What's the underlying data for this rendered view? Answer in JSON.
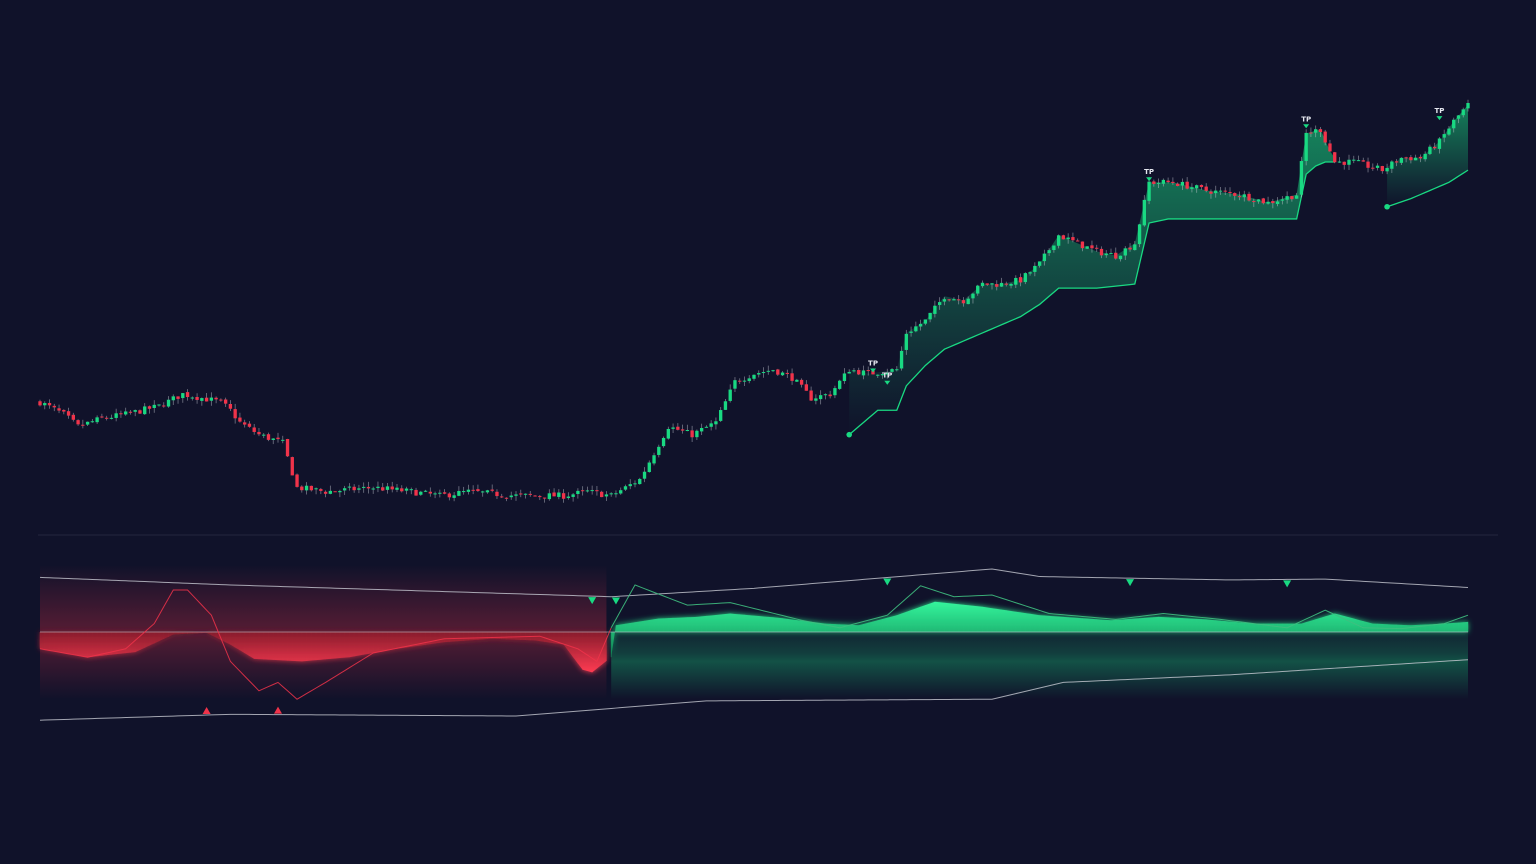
{
  "colors": {
    "background": "#10122a",
    "bull": "#19d982",
    "bear": "#f0334a",
    "wick": "#c9ccd6",
    "band": "#c8cad3",
    "panel_divider": "#23263e",
    "oscillator_line": "#3fbf7f"
  },
  "chart_data": [
    {
      "type": "candlestick",
      "panel": "price",
      "title": "",
      "xlabel": "",
      "ylabel": "",
      "x_range": [
        0,
        300
      ],
      "ylim": [
        0,
        100
      ],
      "grid": false,
      "legend": "none",
      "price_path": [
        {
          "i": 0,
          "v": 27
        },
        {
          "i": 5,
          "v": 24
        },
        {
          "i": 8,
          "v": 21
        },
        {
          "i": 13,
          "v": 23
        },
        {
          "i": 18,
          "v": 24
        },
        {
          "i": 25,
          "v": 26
        },
        {
          "i": 30,
          "v": 29
        },
        {
          "i": 34,
          "v": 28
        },
        {
          "i": 38,
          "v": 27
        },
        {
          "i": 40,
          "v": 25
        },
        {
          "i": 42,
          "v": 22
        },
        {
          "i": 46,
          "v": 19
        },
        {
          "i": 51,
          "v": 17
        },
        {
          "i": 54,
          "v": 6
        },
        {
          "i": 60,
          "v": 5
        },
        {
          "i": 70,
          "v": 6
        },
        {
          "i": 78,
          "v": 5
        },
        {
          "i": 84,
          "v": 4
        },
        {
          "i": 90,
          "v": 5
        },
        {
          "i": 100,
          "v": 4
        },
        {
          "i": 110,
          "v": 4
        },
        {
          "i": 115,
          "v": 5
        },
        {
          "i": 120,
          "v": 4
        },
        {
          "i": 126,
          "v": 8
        },
        {
          "i": 132,
          "v": 21
        },
        {
          "i": 137,
          "v": 19
        },
        {
          "i": 142,
          "v": 22
        },
        {
          "i": 146,
          "v": 32
        },
        {
          "i": 150,
          "v": 34
        },
        {
          "i": 154,
          "v": 35
        },
        {
          "i": 158,
          "v": 33
        },
        {
          "i": 162,
          "v": 28
        },
        {
          "i": 166,
          "v": 29
        },
        {
          "i": 170,
          "v": 35
        },
        {
          "i": 174,
          "v": 34
        },
        {
          "i": 180,
          "v": 35
        },
        {
          "i": 182,
          "v": 44
        },
        {
          "i": 186,
          "v": 47
        },
        {
          "i": 190,
          "v": 53
        },
        {
          "i": 194,
          "v": 52
        },
        {
          "i": 198,
          "v": 56
        },
        {
          "i": 202,
          "v": 56
        },
        {
          "i": 206,
          "v": 57
        },
        {
          "i": 210,
          "v": 61
        },
        {
          "i": 214,
          "v": 68
        },
        {
          "i": 218,
          "v": 66
        },
        {
          "i": 222,
          "v": 64
        },
        {
          "i": 226,
          "v": 63
        },
        {
          "i": 230,
          "v": 66
        },
        {
          "i": 233,
          "v": 81
        },
        {
          "i": 238,
          "v": 81
        },
        {
          "i": 245,
          "v": 79
        },
        {
          "i": 252,
          "v": 78
        },
        {
          "i": 258,
          "v": 76
        },
        {
          "i": 264,
          "v": 78
        },
        {
          "i": 266,
          "v": 93
        },
        {
          "i": 269,
          "v": 94
        },
        {
          "i": 272,
          "v": 86
        },
        {
          "i": 276,
          "v": 86
        },
        {
          "i": 282,
          "v": 84
        },
        {
          "i": 286,
          "v": 87
        },
        {
          "i": 290,
          "v": 87
        },
        {
          "i": 294,
          "v": 91
        },
        {
          "i": 297,
          "v": 96
        },
        {
          "i": 300,
          "v": 100
        }
      ],
      "trailing_stop": [
        {
          "i": 170,
          "v": 19
        },
        {
          "i": 172,
          "v": 21
        },
        {
          "i": 174,
          "v": 23
        },
        {
          "i": 176,
          "v": 25
        },
        {
          "i": 180,
          "v": 25
        },
        {
          "i": 182,
          "v": 31
        },
        {
          "i": 186,
          "v": 36
        },
        {
          "i": 190,
          "v": 40
        },
        {
          "i": 194,
          "v": 42
        },
        {
          "i": 198,
          "v": 44
        },
        {
          "i": 202,
          "v": 46
        },
        {
          "i": 206,
          "v": 48
        },
        {
          "i": 210,
          "v": 51
        },
        {
          "i": 214,
          "v": 55
        },
        {
          "i": 222,
          "v": 55
        },
        {
          "i": 230,
          "v": 56
        },
        {
          "i": 233,
          "v": 71
        },
        {
          "i": 237,
          "v": 72
        },
        {
          "i": 264,
          "v": 72
        },
        {
          "i": 266,
          "v": 83
        },
        {
          "i": 268,
          "v": 85
        },
        {
          "i": 270,
          "v": 86
        },
        {
          "i": 272,
          "v": 86
        }
      ],
      "trailing_stop_2": [
        {
          "i": 283,
          "v": 75
        },
        {
          "i": 288,
          "v": 77
        },
        {
          "i": 292,
          "v": 79
        },
        {
          "i": 296,
          "v": 81
        },
        {
          "i": 300,
          "v": 84
        }
      ],
      "entry_markers": [
        {
          "i": 170,
          "v": 19
        },
        {
          "i": 283,
          "v": 75
        }
      ],
      "tp_label": "TP",
      "tp_markers": [
        {
          "i": 175,
          "v": 36,
          "label": "TP"
        },
        {
          "i": 178,
          "v": 33,
          "label": "TP"
        },
        {
          "i": 233,
          "v": 83,
          "label": "TP"
        },
        {
          "i": 266,
          "v": 96,
          "label": "TP"
        },
        {
          "i": 294,
          "v": 98,
          "label": "TP"
        }
      ]
    },
    {
      "type": "area",
      "panel": "oscillator",
      "title": "",
      "xlabel": "",
      "ylabel": "",
      "x_range": [
        0,
        300
      ],
      "ylim": [
        -100,
        100
      ],
      "zero_line": 0,
      "grid": false,
      "legend": "none",
      "bear_segment": [
        0,
        119
      ],
      "bull_segment": [
        120,
        300
      ],
      "histogram_path": [
        {
          "i": 0,
          "v": -20
        },
        {
          "i": 10,
          "v": -30
        },
        {
          "i": 20,
          "v": -24
        },
        {
          "i": 28,
          "v": -3
        },
        {
          "i": 35,
          "v": -1
        },
        {
          "i": 40,
          "v": -15
        },
        {
          "i": 45,
          "v": -32
        },
        {
          "i": 55,
          "v": -35
        },
        {
          "i": 65,
          "v": -30
        },
        {
          "i": 75,
          "v": -20
        },
        {
          "i": 85,
          "v": -12
        },
        {
          "i": 95,
          "v": -8
        },
        {
          "i": 104,
          "v": -10
        },
        {
          "i": 110,
          "v": -15
        },
        {
          "i": 114,
          "v": -45
        },
        {
          "i": 116,
          "v": -48
        },
        {
          "i": 120,
          "v": -30
        },
        {
          "i": 121,
          "v": 8
        },
        {
          "i": 130,
          "v": 16
        },
        {
          "i": 138,
          "v": 18
        },
        {
          "i": 145,
          "v": 22
        },
        {
          "i": 155,
          "v": 17
        },
        {
          "i": 165,
          "v": 10
        },
        {
          "i": 172,
          "v": 8
        },
        {
          "i": 180,
          "v": 20
        },
        {
          "i": 188,
          "v": 36
        },
        {
          "i": 198,
          "v": 30
        },
        {
          "i": 210,
          "v": 20
        },
        {
          "i": 225,
          "v": 14
        },
        {
          "i": 235,
          "v": 18
        },
        {
          "i": 245,
          "v": 15
        },
        {
          "i": 255,
          "v": 10
        },
        {
          "i": 265,
          "v": 10
        },
        {
          "i": 272,
          "v": 22
        },
        {
          "i": 280,
          "v": 10
        },
        {
          "i": 288,
          "v": 8
        },
        {
          "i": 295,
          "v": 10
        },
        {
          "i": 300,
          "v": 12
        }
      ],
      "signal_path": [
        {
          "i": 0,
          "v": -20
        },
        {
          "i": 10,
          "v": -30
        },
        {
          "i": 18,
          "v": -20
        },
        {
          "i": 24,
          "v": 10
        },
        {
          "i": 28,
          "v": 50
        },
        {
          "i": 31,
          "v": 50
        },
        {
          "i": 36,
          "v": 20
        },
        {
          "i": 40,
          "v": -35
        },
        {
          "i": 46,
          "v": -70
        },
        {
          "i": 50,
          "v": -60
        },
        {
          "i": 54,
          "v": -80
        },
        {
          "i": 60,
          "v": -60
        },
        {
          "i": 70,
          "v": -25
        },
        {
          "i": 85,
          "v": -8
        },
        {
          "i": 105,
          "v": -5
        },
        {
          "i": 113,
          "v": -20
        },
        {
          "i": 117,
          "v": -35
        },
        {
          "i": 120,
          "v": 5
        },
        {
          "i": 125,
          "v": 56
        },
        {
          "i": 130,
          "v": 45
        },
        {
          "i": 136,
          "v": 32
        },
        {
          "i": 145,
          "v": 35
        },
        {
          "i": 160,
          "v": 14
        },
        {
          "i": 168,
          "v": 5
        },
        {
          "i": 178,
          "v": 20
        },
        {
          "i": 185,
          "v": 55
        },
        {
          "i": 192,
          "v": 42
        },
        {
          "i": 200,
          "v": 44
        },
        {
          "i": 212,
          "v": 22
        },
        {
          "i": 226,
          "v": 15
        },
        {
          "i": 236,
          "v": 22
        },
        {
          "i": 248,
          "v": 15
        },
        {
          "i": 262,
          "v": 5
        },
        {
          "i": 270,
          "v": 26
        },
        {
          "i": 278,
          "v": 5
        },
        {
          "i": 286,
          "v": 4
        },
        {
          "i": 295,
          "v": 10
        },
        {
          "i": 300,
          "v": 20
        }
      ],
      "upper_band": [
        {
          "i": 0,
          "v": 65
        },
        {
          "i": 40,
          "v": 56
        },
        {
          "i": 120,
          "v": 42
        },
        {
          "i": 150,
          "v": 52
        },
        {
          "i": 200,
          "v": 75
        },
        {
          "i": 210,
          "v": 66
        },
        {
          "i": 250,
          "v": 62
        },
        {
          "i": 270,
          "v": 63
        },
        {
          "i": 300,
          "v": 53
        }
      ],
      "lower_band": [
        {
          "i": 0,
          "v": -105
        },
        {
          "i": 40,
          "v": -98
        },
        {
          "i": 100,
          "v": -100
        },
        {
          "i": 140,
          "v": -82
        },
        {
          "i": 200,
          "v": -80
        },
        {
          "i": 215,
          "v": -60
        },
        {
          "i": 250,
          "v": -51
        },
        {
          "i": 300,
          "v": -33
        }
      ],
      "bull_signals": [
        {
          "i": 35
        },
        {
          "i": 50
        }
      ],
      "bear_signals": [
        {
          "i": 116
        },
        {
          "i": 121
        },
        {
          "i": 178
        },
        {
          "i": 229
        },
        {
          "i": 262
        }
      ]
    }
  ]
}
